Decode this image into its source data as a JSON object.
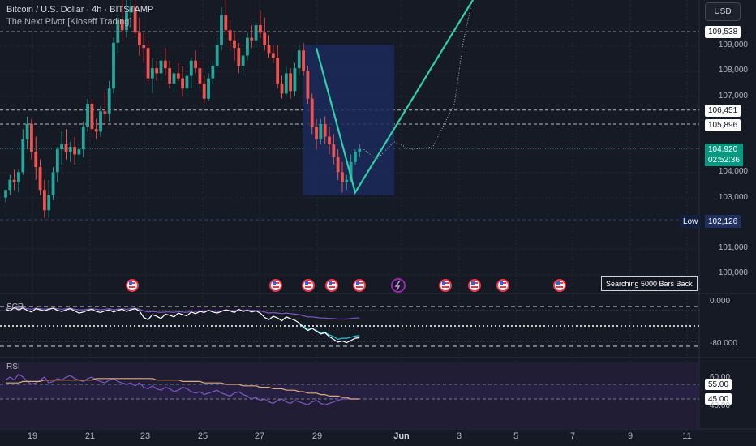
{
  "header": {
    "title": "Bitcoin / U.S. Dollar · 4h · BITSTAMP",
    "subtitle": "The Next Pivot [Kioseff Trading]"
  },
  "currency_button": "USD",
  "price_axis_labels": [
    "109,000",
    "108,000",
    "107,000",
    "104,000",
    "103,000",
    "101,000",
    "100,000"
  ],
  "price_boxes": {
    "level1": "109,538",
    "level2": "106,451",
    "level3": "105,896",
    "current_price": "104,920",
    "countdown": "02:52:36",
    "low_label": "Low",
    "low_value": "102,126"
  },
  "searching_label": "Searching 5000 Bars Back",
  "x_axis_labels": [
    {
      "text": "19",
      "bold": false
    },
    {
      "text": "21",
      "bold": false
    },
    {
      "text": "23",
      "bold": false
    },
    {
      "text": "25",
      "bold": false
    },
    {
      "text": "27",
      "bold": false
    },
    {
      "text": "29",
      "bold": false
    },
    {
      "text": "Jun",
      "bold": true
    },
    {
      "text": "3",
      "bold": false
    },
    {
      "text": "5",
      "bold": false
    },
    {
      "text": "7",
      "bold": false
    },
    {
      "text": "9",
      "bold": false
    },
    {
      "text": "11",
      "bold": false
    }
  ],
  "scr_pane": {
    "label": "SCR",
    "ticks": [
      "0.000",
      "-80.000"
    ]
  },
  "rsi_pane": {
    "label": "RSI",
    "ticks": [
      "60.00",
      "40.00"
    ],
    "boxes": [
      "55.00",
      "45.00"
    ]
  },
  "colors": {
    "background": "#161a25",
    "up": "#26a69a",
    "down": "#ef5350",
    "pivot_line": "#2ed0a8",
    "box_fill": "#1b2a5a",
    "current_price": "#089981"
  },
  "chart_data": {
    "type": "candlestick",
    "ylim": [
      99500,
      111000
    ],
    "x_dates": [
      "19",
      "21",
      "23",
      "25",
      "27",
      "29",
      "Jun",
      "3",
      "5",
      "7",
      "9",
      "11"
    ],
    "candles": [
      [
        103000,
        103300,
        102800,
        103300
      ],
      [
        103300,
        103900,
        103100,
        103700
      ],
      [
        103700,
        104100,
        103300,
        103600
      ],
      [
        103600,
        104100,
        103200,
        104000
      ],
      [
        104000,
        105700,
        103900,
        105300
      ],
      [
        105300,
        106200,
        104900,
        105900
      ],
      [
        105900,
        106100,
        104500,
        104800
      ],
      [
        104800,
        105400,
        103700,
        104200
      ],
      [
        104200,
        104500,
        103100,
        103300
      ],
      [
        103300,
        103700,
        102200,
        102500
      ],
      [
        102500,
        103700,
        102200,
        103100
      ],
      [
        103100,
        104200,
        102900,
        104000
      ],
      [
        104000,
        105000,
        103600,
        104900
      ],
      [
        104900,
        105600,
        104300,
        105100
      ],
      [
        105100,
        105700,
        104500,
        104800
      ],
      [
        104800,
        105200,
        104400,
        105000
      ],
      [
        105000,
        105400,
        104300,
        104700
      ],
      [
        104700,
        105100,
        104300,
        104900
      ],
      [
        104900,
        106000,
        104600,
        105800
      ],
      [
        105800,
        106900,
        105600,
        106700
      ],
      [
        106700,
        106900,
        105500,
        105700
      ],
      [
        105700,
        106100,
        105300,
        105600
      ],
      [
        105600,
        106600,
        105400,
        106400
      ],
      [
        106400,
        107200,
        105900,
        106300
      ],
      [
        106300,
        107600,
        106000,
        107300
      ],
      [
        107300,
        109300,
        107100,
        109100
      ],
      [
        109100,
        110200,
        108700,
        110000
      ],
      [
        110000,
        111000,
        109200,
        109600
      ],
      [
        109600,
        110800,
        109300,
        110300
      ],
      [
        110300,
        111100,
        109900,
        110500
      ],
      [
        110500,
        111000,
        109300,
        109500
      ],
      [
        109500,
        110100,
        108600,
        109000
      ],
      [
        109000,
        109500,
        108300,
        108900
      ],
      [
        108900,
        109200,
        107500,
        107700
      ],
      [
        107700,
        108500,
        107100,
        108100
      ],
      [
        108100,
        108400,
        107600,
        107900
      ],
      [
        107900,
        108600,
        107600,
        108400
      ],
      [
        108400,
        108900,
        107800,
        108100
      ],
      [
        108100,
        108400,
        107300,
        107500
      ],
      [
        107500,
        108200,
        107200,
        107900
      ],
      [
        107900,
        108300,
        107600,
        107700
      ],
      [
        107700,
        108200,
        107000,
        107300
      ],
      [
        107300,
        107900,
        107000,
        107800
      ],
      [
        107800,
        108500,
        107300,
        108400
      ],
      [
        108400,
        108800,
        107900,
        108100
      ],
      [
        108100,
        108400,
        107300,
        107500
      ],
      [
        107500,
        107800,
        106700,
        106900
      ],
      [
        106900,
        107900,
        106800,
        107700
      ],
      [
        107700,
        108400,
        107500,
        108200
      ],
      [
        108200,
        109300,
        108100,
        109000
      ],
      [
        109000,
        110500,
        108800,
        110200
      ],
      [
        110200,
        110800,
        109400,
        109600
      ],
      [
        109600,
        110000,
        108800,
        109200
      ],
      [
        109200,
        109500,
        108400,
        108900
      ],
      [
        108900,
        109100,
        107900,
        108200
      ],
      [
        108200,
        108900,
        107800,
        108600
      ],
      [
        108600,
        109500,
        108400,
        109300
      ],
      [
        109300,
        109800,
        108900,
        109200
      ],
      [
        109200,
        110000,
        108900,
        109800
      ],
      [
        109800,
        110400,
        109300,
        109500
      ],
      [
        109500,
        110100,
        108800,
        109000
      ],
      [
        109000,
        109400,
        108500,
        108700
      ],
      [
        108700,
        109000,
        108300,
        108500
      ],
      [
        108500,
        109000,
        107300,
        107500
      ],
      [
        107500,
        107800,
        106900,
        107100
      ],
      [
        107100,
        108200,
        107000,
        107900
      ],
      [
        107900,
        108100,
        106900,
        107200
      ],
      [
        107200,
        108300,
        107000,
        108100
      ],
      [
        108100,
        109000,
        107800,
        108800
      ],
      [
        108800,
        109100,
        107800,
        108000
      ],
      [
        108000,
        108200,
        106700,
        106900
      ],
      [
        106900,
        107100,
        105500,
        105800
      ],
      [
        105800,
        106100,
        104900,
        105300
      ],
      [
        105300,
        106100,
        105100,
        105900
      ],
      [
        105900,
        106200,
        105100,
        105400
      ],
      [
        105400,
        105800,
        104700,
        105100
      ],
      [
        105100,
        105500,
        104300,
        104600
      ],
      [
        104600,
        104900,
        103700,
        104000
      ],
      [
        104000,
        104400,
        103200,
        103600
      ],
      [
        103600,
        103900,
        103300,
        103700
      ],
      [
        103700,
        104700,
        103600,
        104400
      ],
      [
        104400,
        104900,
        104300,
        104800
      ],
      [
        104800,
        105100,
        104600,
        104920
      ]
    ],
    "pivot_zigzag": [
      {
        "bar": 72,
        "price": 108900
      },
      {
        "bar": 81,
        "price": 103200
      },
      {
        "bar": 109,
        "price": 111000
      }
    ],
    "projection_dotted": [
      {
        "bar": 83,
        "price": 104900
      },
      {
        "bar": 86,
        "price": 104500
      },
      {
        "bar": 90,
        "price": 105200
      },
      {
        "bar": 94,
        "price": 104900
      },
      {
        "bar": 99,
        "price": 105000
      },
      {
        "bar": 104,
        "price": 106700
      },
      {
        "bar": 106,
        "price": 109100
      },
      {
        "bar": 108,
        "price": 110700
      }
    ],
    "horizontal_levels": [
      109538,
      106451,
      105896,
      104920,
      102126
    ],
    "scr_range": [
      -100,
      10
    ],
    "scr_white": [
      -5,
      -8,
      -2,
      -6,
      -3,
      -7,
      -10,
      -4,
      -6,
      -8,
      -5,
      -3,
      -7,
      -9,
      -6,
      -4,
      -8,
      -12,
      -10,
      -7,
      -5,
      -9,
      -11,
      -8,
      -6,
      -10,
      -7,
      -5,
      -9,
      -6,
      -4,
      -8,
      -20,
      -24,
      -15,
      -18,
      -22,
      -14,
      -16,
      -19,
      -12,
      -15,
      -17,
      -10,
      -13,
      -9,
      -11,
      -7,
      -10,
      -12,
      -9,
      -6,
      -8,
      -11,
      -5,
      -9,
      -7,
      -10,
      -8,
      -12,
      -20,
      -24,
      -18,
      -21,
      -26,
      -19,
      -22,
      -25,
      -30,
      -38,
      -44,
      -40,
      -45,
      -50,
      -48,
      -55,
      -60,
      -65,
      -63,
      -66,
      -62,
      -58,
      -57
    ],
    "scr_purple": [
      -3,
      -4,
      -2,
      -3,
      -2,
      -4,
      -5,
      -3,
      -4,
      -5,
      -4,
      -3,
      -4,
      -5,
      -4,
      -3,
      -5,
      -6,
      -6,
      -5,
      -4,
      -5,
      -6,
      -5,
      -4,
      -6,
      -5,
      -4,
      -5,
      -4,
      -3,
      -5,
      -8,
      -10,
      -9,
      -10,
      -11,
      -10,
      -10,
      -11,
      -9,
      -10,
      -11,
      -8,
      -9,
      -8,
      -9,
      -7,
      -8,
      -9,
      -8,
      -6,
      -7,
      -8,
      -6,
      -7,
      -6,
      -7,
      -7,
      -8,
      -10,
      -12,
      -11,
      -12,
      -13,
      -12,
      -13,
      -14,
      -15,
      -17,
      -19,
      -19,
      -20,
      -21,
      -21,
      -22,
      -22,
      -23,
      -23,
      -23,
      -22,
      -21,
      -21
    ],
    "scr_cyan": [
      null,
      null,
      null,
      null,
      null,
      null,
      null,
      null,
      null,
      null,
      null,
      null,
      null,
      null,
      null,
      null,
      null,
      null,
      null,
      null,
      null,
      null,
      null,
      null,
      null,
      null,
      null,
      null,
      null,
      null,
      null,
      null,
      null,
      null,
      null,
      null,
      null,
      null,
      null,
      null,
      null,
      null,
      null,
      null,
      null,
      null,
      null,
      null,
      null,
      null,
      null,
      null,
      null,
      null,
      null,
      null,
      null,
      null,
      null,
      null,
      null,
      null,
      null,
      null,
      null,
      null,
      null,
      null,
      -32,
      -36,
      -42,
      -40,
      -44,
      -48,
      -47,
      -52,
      -55,
      -60,
      -58,
      -58,
      -56,
      -54,
      -53
    ],
    "rsi_range": [
      36,
      66
    ],
    "rsi_purple": [
      58,
      60,
      58,
      62,
      60,
      57,
      55,
      56,
      58,
      60,
      56,
      57,
      59,
      58,
      60,
      61,
      59,
      58,
      57,
      59,
      60,
      58,
      57,
      56,
      58,
      59,
      57,
      56,
      55,
      56,
      54,
      56,
      53,
      52,
      54,
      52,
      51,
      53,
      52,
      50,
      51,
      53,
      52,
      50,
      49,
      50,
      48,
      49,
      50,
      51,
      49,
      48,
      47,
      49,
      50,
      48,
      47,
      45,
      46,
      44,
      45,
      43,
      42,
      44,
      45,
      43,
      42,
      44,
      43,
      42,
      41,
      43,
      44,
      42,
      41,
      42,
      43,
      44,
      45,
      45,
      45,
      45,
      45
    ],
    "rsi_orange": [
      56,
      56,
      56,
      56,
      57,
      57,
      57,
      57,
      57,
      58,
      58,
      58,
      58,
      58,
      58,
      58,
      58,
      58,
      58,
      58,
      58,
      59,
      59,
      59,
      59,
      59,
      59,
      59,
      59,
      59,
      59,
      59,
      59,
      59,
      59,
      58,
      58,
      58,
      58,
      58,
      58,
      57,
      57,
      57,
      57,
      57,
      56,
      56,
      56,
      56,
      56,
      55,
      55,
      55,
      55,
      54,
      54,
      54,
      54,
      53,
      53,
      53,
      52,
      52,
      52,
      51,
      51,
      51,
      50,
      50,
      49,
      49,
      49,
      48,
      48,
      47,
      47,
      47,
      46,
      46,
      45,
      45,
      45
    ]
  }
}
